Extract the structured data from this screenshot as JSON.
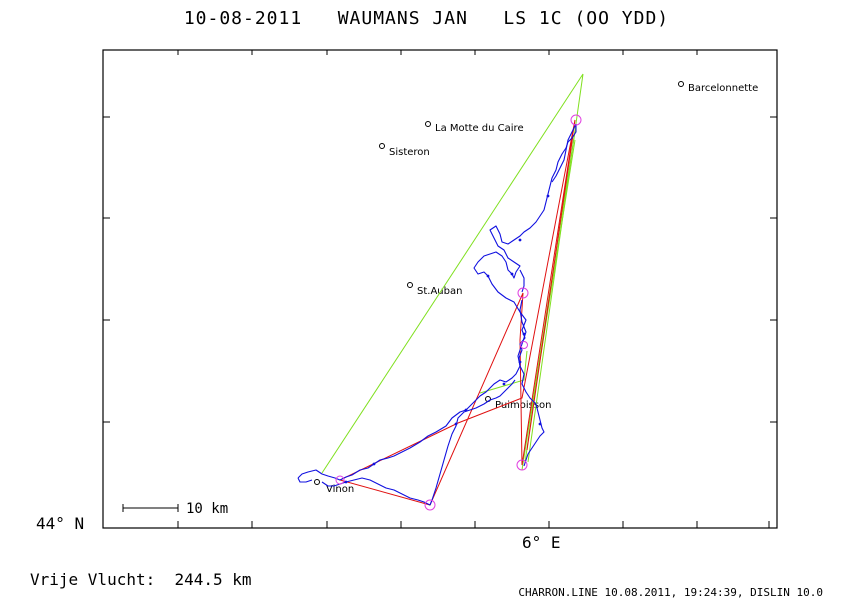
{
  "header": {
    "title": "10-08-2011   WAUMANS JAN   LS 1C (OO YDD)"
  },
  "axes": {
    "lat_label": "44° N",
    "lon_label": "6° E"
  },
  "scale_bar": {
    "label": "10 km"
  },
  "towns": [
    {
      "id": "barcelonnette",
      "name": "Barcelonnette"
    },
    {
      "id": "la-motte-du-caire",
      "name": "La Motte du Caire"
    },
    {
      "id": "sisteron",
      "name": "Sisteron"
    },
    {
      "id": "st-auban",
      "name": "St.Auban"
    },
    {
      "id": "puimoisson",
      "name": "Puimoisson"
    },
    {
      "id": "vinon",
      "name": "Vinon"
    }
  ],
  "flight": {
    "distance_text": "Vrije Vlucht:  244.5 km"
  },
  "footer": {
    "text": "CHARRON.LINE 10.08.2011, 19:24:39, DISLIN 10.0"
  },
  "colors": {
    "track": "#1010e0",
    "task": "#e01010",
    "optimized": "#80e020",
    "turnpoint": "#e040e0",
    "axes": "#000000"
  }
}
